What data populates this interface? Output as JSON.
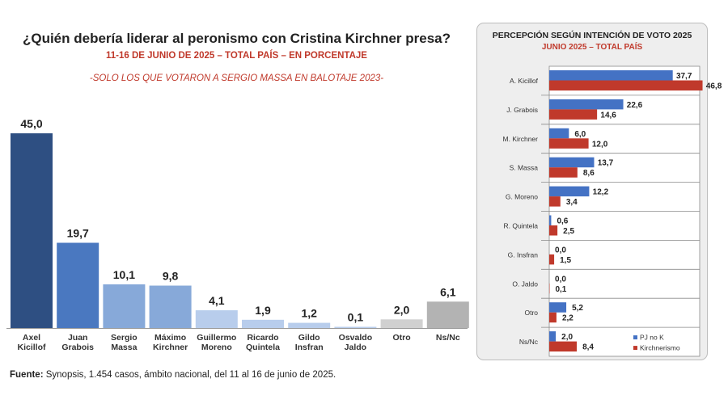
{
  "header": {
    "title": "¿Quién debería liderar al peronismo con Cristina Kirchner presa?",
    "subtitle": "11-16 DE JUNIO DE 2025 – TOTAL PAÍS – EN PORCENTAJE",
    "note": "-SOLO LOS QUE VOTARON A SERGIO MASSA EN BALOTAJE 2023-"
  },
  "source": {
    "label": "Fuente:",
    "text": " Synopsis, 1.454 casos, ámbito nacional, del 11 al 16 de junio de 2025."
  },
  "side_panel": {
    "title": "PERCEPCIÓN SEGÚN INTENCIÓN DE VOTO 2025",
    "subtitle": "JUNIO 2025 – TOTAL PAÍS"
  },
  "colors": {
    "dark_blue": "#2e4f82",
    "mid_blue": "#4a78c0",
    "light_blue": "#87a9d9",
    "pale_blue": "#b8cdec",
    "gray": "#b3b3b3",
    "pj_blue": "#4472c4",
    "k_red": "#c0392b"
  },
  "chart_data": [
    {
      "type": "bar",
      "categories": [
        [
          "Axel",
          "Kicillof"
        ],
        [
          "Juan",
          "Grabois"
        ],
        [
          "Sergio",
          "Massa"
        ],
        [
          "Máximo",
          "Kirchner"
        ],
        [
          "Guillermo",
          "Moreno"
        ],
        [
          "Ricardo",
          "Quintela"
        ],
        [
          "Gildo",
          "Insfran"
        ],
        [
          "Osvaldo",
          "Jaldo"
        ],
        [
          "Otro"
        ],
        [
          "Ns/Nc"
        ]
      ],
      "values": [
        45.0,
        19.7,
        10.1,
        9.8,
        4.1,
        1.9,
        1.2,
        0.1,
        2.0,
        6.1
      ],
      "value_labels": [
        "45,0",
        "19,7",
        "10,1",
        "9,8",
        "4,1",
        "1,9",
        "1,2",
        "0,1",
        "2,0",
        "6,1"
      ],
      "bar_colors": [
        "#2e4f82",
        "#4a78c0",
        "#87a9d9",
        "#87a9d9",
        "#b8cdec",
        "#b8cdec",
        "#b8cdec",
        "#b8cdec",
        "#d0d0d0",
        "#b3b3b3"
      ],
      "ylim": [
        0,
        45
      ]
    },
    {
      "type": "bar",
      "orientation": "horizontal",
      "categories": [
        "A. Kicillof",
        "J. Grabois",
        "M. Kirchner",
        "S. Massa",
        "G. Moreno",
        "R. Quintela",
        "G. Insfran",
        "O. Jaldo",
        "Otro",
        "Ns/Nc"
      ],
      "series": [
        {
          "name": "PJ no K",
          "color": "#4472c4",
          "values": [
            37.7,
            22.6,
            6.0,
            13.7,
            12.2,
            0.6,
            0.0,
            0.0,
            5.2,
            2.0
          ],
          "labels": [
            "37,7",
            "22,6",
            "6,0",
            "13,7",
            "12,2",
            "0,6",
            "0,0",
            "0,0",
            "5,2",
            "2,0"
          ]
        },
        {
          "name": "Kirchnerismo",
          "color": "#c0392b",
          "values": [
            46.8,
            14.6,
            12.0,
            8.6,
            3.4,
            2.5,
            1.5,
            0.1,
            2.2,
            8.4
          ],
          "labels": [
            "46,8",
            "14,6",
            "12,0",
            "8,6",
            "3,4",
            "2,5",
            "1,5",
            "0,1",
            "2,2",
            "8,4"
          ]
        }
      ],
      "legend": "bottom-right",
      "xlim": [
        0,
        50
      ]
    }
  ]
}
